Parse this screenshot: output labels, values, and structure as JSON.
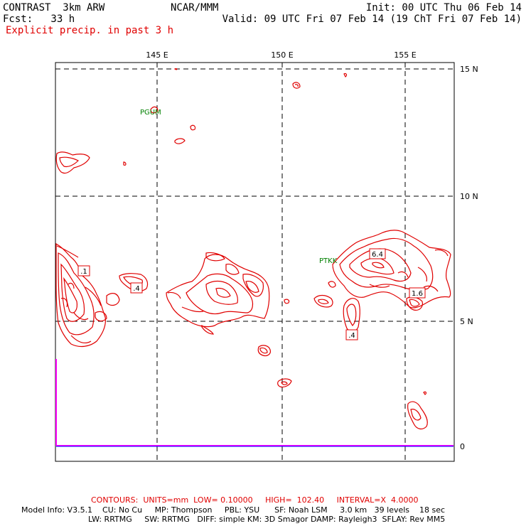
{
  "header": {
    "title": "CONTRAST  3km ARW",
    "forecast": "Fcst:   33 h",
    "product": "Explicit precip. in past 3 h",
    "center": "NCAR/MMM",
    "init": "Init: 00 UTC Thu 06 Feb 14",
    "valid": "Valid: 09 UTC Fri 07 Feb 14 (19 ChT Fri 07 Feb 14)"
  },
  "map": {
    "longitude_labels": [
      "145 E",
      "150 E",
      "155 E"
    ],
    "latitude_labels": [
      "15 N",
      "10 N",
      "5 N",
      "0"
    ],
    "station_labels": [
      "PGUM",
      "PTKK"
    ],
    "contour_labels": [
      ".1",
      ".4",
      "6.4",
      "1.6",
      ".4"
    ],
    "colors": {
      "contour": "#e00000",
      "station": "#008000",
      "grid": "#000000",
      "boundary": "#ff00ff"
    }
  },
  "footer": {
    "contours": "CONTOURS:  UNITS=mm  LOW= 0.10000     HIGH=  102.40     INTERVAL=X  4.0000",
    "model_line_1": "Model Info: V3.5.1    CU: No Cu     MP: Thompson     PBL: YSU      SF: Noah LSM     3.0 km   39 levels    18 sec",
    "model_line_2": "LW: RRTMG     SW: RRTMG   DIFF: simple KM: 3D Smagor DAMP: Rayleigh3  SFLAY: Rev MM5"
  }
}
